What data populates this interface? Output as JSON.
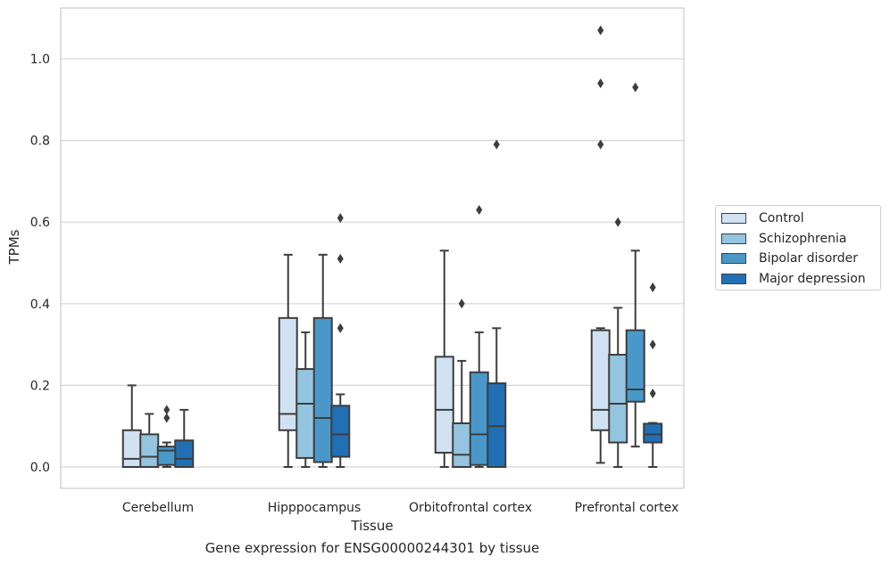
{
  "chart_data": {
    "type": "box",
    "title": "",
    "caption": "Gene expression for ENSG00000244301 by tissue",
    "xlabel": "Tissue",
    "ylabel": "TPMs",
    "ylim": [
      -0.05,
      1.13
    ],
    "yticks": [
      "0.0",
      "0.2",
      "0.4",
      "0.6",
      "0.8",
      "1.0"
    ],
    "ytick_values": [
      0.0,
      0.2,
      0.4,
      0.6,
      0.8,
      1.0
    ],
    "grid": true,
    "legend_position": "right",
    "categories": [
      "Cerebellum",
      "Hipppocampus",
      "Orbitofrontal cortex",
      "Prefrontal cortex"
    ],
    "series": [
      {
        "name": "Control",
        "color": "#d0e1f2",
        "boxes": [
          {
            "whisker_low": 0.0,
            "q1": 0.0,
            "median": 0.02,
            "q3": 0.09,
            "whisker_high": 0.2,
            "outliers": []
          },
          {
            "whisker_low": 0.0,
            "q1": 0.09,
            "median": 0.13,
            "q3": 0.365,
            "whisker_high": 0.52,
            "outliers": []
          },
          {
            "whisker_low": 0.0,
            "q1": 0.035,
            "median": 0.14,
            "q3": 0.27,
            "whisker_high": 0.53,
            "outliers": []
          },
          {
            "whisker_low": 0.01,
            "q1": 0.09,
            "median": 0.14,
            "q3": 0.335,
            "whisker_high": 0.34,
            "outliers": [
              0.79,
              0.94,
              1.07
            ]
          }
        ]
      },
      {
        "name": "Schizophrenia",
        "color": "#94c4df",
        "boxes": [
          {
            "whisker_low": 0.0,
            "q1": 0.0,
            "median": 0.025,
            "q3": 0.08,
            "whisker_high": 0.13,
            "outliers": []
          },
          {
            "whisker_low": 0.0,
            "q1": 0.022,
            "median": 0.155,
            "q3": 0.24,
            "whisker_high": 0.33,
            "outliers": []
          },
          {
            "whisker_low": 0.0,
            "q1": 0.0,
            "median": 0.03,
            "q3": 0.107,
            "whisker_high": 0.26,
            "outliers": [
              0.4
            ]
          },
          {
            "whisker_low": 0.0,
            "q1": 0.06,
            "median": 0.155,
            "q3": 0.275,
            "whisker_high": 0.39,
            "outliers": [
              0.6
            ]
          }
        ]
      },
      {
        "name": "Bipolar disorder",
        "color": "#4a98c9",
        "boxes": [
          {
            "whisker_low": 0.0,
            "q1": 0.005,
            "median": 0.04,
            "q3": 0.05,
            "whisker_high": 0.06,
            "outliers": [
              0.12,
              0.14
            ]
          },
          {
            "whisker_low": 0.0,
            "q1": 0.012,
            "median": 0.12,
            "q3": 0.365,
            "whisker_high": 0.52,
            "outliers": []
          },
          {
            "whisker_low": 0.0,
            "q1": 0.005,
            "median": 0.08,
            "q3": 0.232,
            "whisker_high": 0.33,
            "outliers": [
              0.63
            ]
          },
          {
            "whisker_low": 0.05,
            "q1": 0.16,
            "median": 0.19,
            "q3": 0.335,
            "whisker_high": 0.53,
            "outliers": [
              0.93
            ]
          }
        ]
      },
      {
        "name": "Major depression",
        "color": "#2170b5",
        "boxes": [
          {
            "whisker_low": 0.0,
            "q1": 0.0,
            "median": 0.02,
            "q3": 0.065,
            "whisker_high": 0.14,
            "outliers": []
          },
          {
            "whisker_low": 0.0,
            "q1": 0.025,
            "median": 0.08,
            "q3": 0.15,
            "whisker_high": 0.178,
            "outliers": [
              0.34,
              0.51,
              0.61
            ]
          },
          {
            "whisker_low": 0.0,
            "q1": 0.0,
            "median": 0.1,
            "q3": 0.205,
            "whisker_high": 0.34,
            "outliers": [
              0.79
            ]
          },
          {
            "whisker_low": 0.0,
            "q1": 0.06,
            "median": 0.08,
            "q3": 0.106,
            "whisker_high": 0.108,
            "outliers": [
              0.18,
              0.3,
              0.44
            ]
          }
        ]
      }
    ]
  }
}
